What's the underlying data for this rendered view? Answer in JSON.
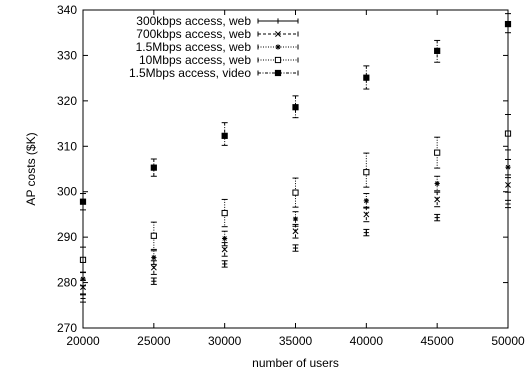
{
  "chart_data": {
    "type": "scatter",
    "title": "",
    "xlabel": "number of users",
    "ylabel": "AP costs ($K)",
    "xlim": [
      20000,
      50000
    ],
    "ylim": [
      270,
      340
    ],
    "xticks": [
      20000,
      25000,
      30000,
      35000,
      40000,
      45000,
      50000
    ],
    "yticks": [
      270,
      280,
      290,
      300,
      310,
      320,
      330,
      340
    ],
    "grid": false,
    "legend_position": "top-left",
    "x": [
      20000,
      25000,
      30000,
      35000,
      40000,
      45000,
      50000
    ],
    "series": [
      {
        "name": "300kbps access, web",
        "marker": "plus",
        "line_style": "solid",
        "values": [
          276.5,
          280.3,
          284.1,
          287.6,
          291.0,
          294.3,
          297.3
        ],
        "err_low": [
          0.8,
          0.7,
          0.7,
          0.7,
          0.7,
          0.7,
          0.8
        ],
        "err_high": [
          0.8,
          0.7,
          0.7,
          0.7,
          0.7,
          0.7,
          0.8
        ]
      },
      {
        "name": "700kbps access, web",
        "marker": "x",
        "line_style": "dashed",
        "values": [
          279.0,
          283.3,
          287.3,
          291.3,
          295.0,
          298.3,
          301.5
        ],
        "err_low": [
          1.5,
          1.5,
          1.5,
          1.5,
          1.6,
          1.6,
          1.6
        ],
        "err_high": [
          1.5,
          1.5,
          1.5,
          1.5,
          1.6,
          1.6,
          1.6
        ]
      },
      {
        "name": "1.5Mbps access, web",
        "marker": "asterisk",
        "line_style": "dotted",
        "values": [
          280.8,
          285.5,
          289.7,
          294.0,
          298.0,
          301.8,
          305.4
        ],
        "err_low": [
          1.5,
          1.5,
          1.6,
          1.6,
          1.6,
          1.6,
          1.7
        ],
        "err_high": [
          1.5,
          1.5,
          1.6,
          1.6,
          1.6,
          1.6,
          1.7
        ]
      },
      {
        "name": "10Mbps access, web",
        "marker": "square",
        "line_style": "dotted",
        "values": [
          285.0,
          290.3,
          295.3,
          299.8,
          304.3,
          308.6,
          312.8
        ],
        "err_low": [
          2.8,
          3.0,
          3.0,
          3.2,
          3.3,
          3.4,
          3.6
        ],
        "err_high": [
          2.8,
          3.0,
          3.0,
          3.2,
          4.2,
          3.4,
          4.2
        ]
      },
      {
        "name": "1.5Mbps access, video",
        "marker": "filled-square",
        "line_style": "dash-dot",
        "values": [
          297.8,
          305.3,
          312.3,
          318.6,
          325.1,
          331.0,
          336.9
        ],
        "err_low": [
          1.8,
          1.9,
          2.1,
          2.3,
          2.5,
          2.5,
          1.9
        ],
        "err_high": [
          1.8,
          1.9,
          2.9,
          2.5,
          2.6,
          2.3,
          2.3
        ]
      }
    ]
  }
}
